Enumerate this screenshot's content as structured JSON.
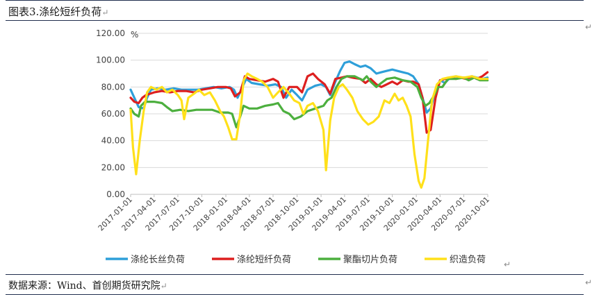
{
  "header": {
    "title": "图表3.涤纶短纤负荷"
  },
  "footer": {
    "source": "数据来源：Wind、首创期货研究院"
  },
  "paragraph_mark": "↵",
  "chart_data": {
    "type": "line",
    "ylabel": "%",
    "ylim": [
      0,
      120
    ],
    "y_ticks": [
      "0.00",
      "20.00",
      "40.00",
      "60.00",
      "80.00",
      "100.00",
      "120.00"
    ],
    "x_ticks": [
      "2017-01-01",
      "2017-04-01",
      "2017-07-01",
      "2017-10-01",
      "2018-01-01",
      "2018-04-01",
      "2018-07-01",
      "2018-10-01",
      "2019-01-01",
      "2019-04-01",
      "2019-07-01",
      "2019-10-01",
      "2020-01-01",
      "2020-04-01",
      "2020-07-01",
      "2020-10-01"
    ],
    "xlim": [
      "2017-01-01",
      "2020-10-01"
    ],
    "grid": true,
    "legend_position": "bottom",
    "series": [
      {
        "name": "涤纶长丝负荷",
        "color": "#2e9fd9",
        "points": [
          [
            "2017-01-01",
            78
          ],
          [
            "2017-01-20",
            70
          ],
          [
            "2017-02-01",
            65
          ],
          [
            "2017-02-20",
            64
          ],
          [
            "2017-03-05",
            72
          ],
          [
            "2017-03-20",
            78
          ],
          [
            "2017-04-15",
            79
          ],
          [
            "2017-05-15",
            78
          ],
          [
            "2017-06-15",
            79
          ],
          [
            "2017-07-15",
            78
          ],
          [
            "2017-08-15",
            78
          ],
          [
            "2017-09-15",
            78
          ],
          [
            "2017-10-15",
            79
          ],
          [
            "2017-11-15",
            80
          ],
          [
            "2017-12-15",
            79
          ],
          [
            "2018-01-15",
            80
          ],
          [
            "2018-02-01",
            78
          ],
          [
            "2018-02-15",
            72
          ],
          [
            "2018-03-01",
            78
          ],
          [
            "2018-03-20",
            86
          ],
          [
            "2018-04-10",
            83
          ],
          [
            "2018-05-10",
            82
          ],
          [
            "2018-06-10",
            81
          ],
          [
            "2018-07-10",
            82
          ],
          [
            "2018-08-01",
            80
          ],
          [
            "2018-08-20",
            72
          ],
          [
            "2018-09-10",
            78
          ],
          [
            "2018-10-01",
            74
          ],
          [
            "2018-10-20",
            70
          ],
          [
            "2018-11-10",
            78
          ],
          [
            "2018-12-10",
            81
          ],
          [
            "2019-01-01",
            82
          ],
          [
            "2019-01-20",
            80
          ],
          [
            "2019-02-05",
            74
          ],
          [
            "2019-02-25",
            84
          ],
          [
            "2019-03-15",
            92
          ],
          [
            "2019-04-01",
            98
          ],
          [
            "2019-04-20",
            99
          ],
          [
            "2019-05-10",
            97
          ],
          [
            "2019-06-01",
            95
          ],
          [
            "2019-06-20",
            96
          ],
          [
            "2019-07-10",
            94
          ],
          [
            "2019-08-01",
            90
          ],
          [
            "2019-08-20",
            91
          ],
          [
            "2019-09-10",
            92
          ],
          [
            "2019-10-01",
            93
          ],
          [
            "2019-10-20",
            92
          ],
          [
            "2019-11-10",
            91
          ],
          [
            "2019-12-01",
            90
          ],
          [
            "2019-12-20",
            88
          ],
          [
            "2020-01-10",
            82
          ],
          [
            "2020-01-25",
            72
          ],
          [
            "2020-02-10",
            61
          ],
          [
            "2020-02-25",
            64
          ],
          [
            "2020-03-15",
            78
          ],
          [
            "2020-04-01",
            85
          ],
          [
            "2020-04-20",
            83
          ],
          [
            "2020-05-10",
            87
          ],
          [
            "2020-06-01",
            88
          ],
          [
            "2020-06-20",
            87
          ],
          [
            "2020-07-10",
            87
          ],
          [
            "2020-08-01",
            88
          ],
          [
            "2020-08-20",
            87
          ],
          [
            "2020-09-10",
            86
          ],
          [
            "2020-09-30",
            87
          ]
        ]
      },
      {
        "name": "涤纶短纤负荷",
        "color": "#dd1f1f",
        "points": [
          [
            "2017-01-01",
            72
          ],
          [
            "2017-01-15",
            69
          ],
          [
            "2017-02-01",
            68
          ],
          [
            "2017-02-15",
            72
          ],
          [
            "2017-03-01",
            74
          ],
          [
            "2017-04-01",
            76
          ],
          [
            "2017-05-01",
            77
          ],
          [
            "2017-06-01",
            76
          ],
          [
            "2017-07-01",
            77
          ],
          [
            "2017-08-01",
            77
          ],
          [
            "2017-09-01",
            76
          ],
          [
            "2017-10-01",
            78
          ],
          [
            "2017-11-01",
            79
          ],
          [
            "2017-12-01",
            80
          ],
          [
            "2018-01-01",
            80
          ],
          [
            "2018-01-20",
            79
          ],
          [
            "2018-02-05",
            73
          ],
          [
            "2018-02-25",
            76
          ],
          [
            "2018-03-15",
            88
          ],
          [
            "2018-04-01",
            86
          ],
          [
            "2018-05-01",
            85
          ],
          [
            "2018-06-01",
            84
          ],
          [
            "2018-07-01",
            86
          ],
          [
            "2018-07-20",
            84
          ],
          [
            "2018-08-10",
            72
          ],
          [
            "2018-09-01",
            80
          ],
          [
            "2018-10-01",
            80
          ],
          [
            "2018-10-20",
            76
          ],
          [
            "2018-11-10",
            88
          ],
          [
            "2018-12-01",
            90
          ],
          [
            "2018-12-20",
            86
          ],
          [
            "2019-01-15",
            82
          ],
          [
            "2019-02-05",
            75
          ],
          [
            "2019-02-25",
            86
          ],
          [
            "2019-03-20",
            87
          ],
          [
            "2019-04-10",
            88
          ],
          [
            "2019-05-01",
            87
          ],
          [
            "2019-06-01",
            86
          ],
          [
            "2019-06-20",
            83
          ],
          [
            "2019-07-10",
            86
          ],
          [
            "2019-08-01",
            82
          ],
          [
            "2019-08-20",
            80
          ],
          [
            "2019-09-10",
            82
          ],
          [
            "2019-10-01",
            84
          ],
          [
            "2019-10-20",
            82
          ],
          [
            "2019-11-10",
            85
          ],
          [
            "2019-12-01",
            84
          ],
          [
            "2019-12-20",
            84
          ],
          [
            "2020-01-10",
            82
          ],
          [
            "2020-01-25",
            72
          ],
          [
            "2020-02-10",
            46
          ],
          [
            "2020-02-25",
            48
          ],
          [
            "2020-03-15",
            72
          ],
          [
            "2020-04-01",
            85
          ],
          [
            "2020-04-20",
            86
          ],
          [
            "2020-05-10",
            87
          ],
          [
            "2020-06-01",
            86
          ],
          [
            "2020-06-20",
            87
          ],
          [
            "2020-07-10",
            86
          ],
          [
            "2020-08-01",
            88
          ],
          [
            "2020-08-20",
            86
          ],
          [
            "2020-09-10",
            88
          ],
          [
            "2020-09-30",
            91
          ]
        ]
      },
      {
        "name": "聚酯切片负荷",
        "color": "#4caf3e",
        "points": [
          [
            "2017-01-01",
            64
          ],
          [
            "2017-01-15",
            60
          ],
          [
            "2017-02-01",
            58
          ],
          [
            "2017-02-10",
            66
          ],
          [
            "2017-02-25",
            69
          ],
          [
            "2017-04-01",
            69
          ],
          [
            "2017-05-01",
            68
          ],
          [
            "2017-05-20",
            65
          ],
          [
            "2017-06-10",
            62
          ],
          [
            "2017-07-10",
            63
          ],
          [
            "2017-08-10",
            62
          ],
          [
            "2017-09-10",
            63
          ],
          [
            "2017-10-10",
            63
          ],
          [
            "2017-11-10",
            63
          ],
          [
            "2017-12-10",
            61
          ],
          [
            "2018-01-10",
            61
          ],
          [
            "2018-01-25",
            60
          ],
          [
            "2018-02-10",
            50
          ],
          [
            "2018-02-25",
            58
          ],
          [
            "2018-03-10",
            66
          ],
          [
            "2018-04-01",
            64
          ],
          [
            "2018-05-01",
            64
          ],
          [
            "2018-06-01",
            66
          ],
          [
            "2018-07-01",
            67
          ],
          [
            "2018-07-20",
            68
          ],
          [
            "2018-08-10",
            62
          ],
          [
            "2018-09-01",
            60
          ],
          [
            "2018-09-20",
            56
          ],
          [
            "2018-10-15",
            58
          ],
          [
            "2018-11-10",
            62
          ],
          [
            "2018-12-10",
            64
          ],
          [
            "2019-01-10",
            66
          ],
          [
            "2019-01-25",
            70
          ],
          [
            "2019-02-10",
            72
          ],
          [
            "2019-03-01",
            80
          ],
          [
            "2019-03-20",
            86
          ],
          [
            "2019-04-10",
            88
          ],
          [
            "2019-05-10",
            88
          ],
          [
            "2019-06-10",
            85
          ],
          [
            "2019-06-25",
            88
          ],
          [
            "2019-07-10",
            84
          ],
          [
            "2019-08-01",
            80
          ],
          [
            "2019-08-20",
            83
          ],
          [
            "2019-09-10",
            86
          ],
          [
            "2019-10-10",
            87
          ],
          [
            "2019-11-10",
            85
          ],
          [
            "2019-12-10",
            84
          ],
          [
            "2020-01-05",
            80
          ],
          [
            "2020-01-20",
            72
          ],
          [
            "2020-02-05",
            66
          ],
          [
            "2020-02-20",
            68
          ],
          [
            "2020-03-10",
            74
          ],
          [
            "2020-03-25",
            80
          ],
          [
            "2020-04-10",
            80
          ],
          [
            "2020-05-01",
            86
          ],
          [
            "2020-06-01",
            86
          ],
          [
            "2020-07-01",
            87
          ],
          [
            "2020-07-20",
            85
          ],
          [
            "2020-08-10",
            87
          ],
          [
            "2020-09-01",
            85
          ],
          [
            "2020-09-30",
            85
          ]
        ]
      },
      {
        "name": "织造负荷",
        "color": "#ffe01a",
        "points": [
          [
            "2017-01-01",
            63
          ],
          [
            "2017-01-10",
            35
          ],
          [
            "2017-01-22",
            15
          ],
          [
            "2017-02-05",
            40
          ],
          [
            "2017-02-20",
            62
          ],
          [
            "2017-03-05",
            76
          ],
          [
            "2017-03-20",
            80
          ],
          [
            "2017-04-10",
            78
          ],
          [
            "2017-05-01",
            80
          ],
          [
            "2017-05-20",
            76
          ],
          [
            "2017-06-10",
            78
          ],
          [
            "2017-07-01",
            74
          ],
          [
            "2017-07-15",
            70
          ],
          [
            "2017-07-25",
            56
          ],
          [
            "2017-08-10",
            72
          ],
          [
            "2017-09-01",
            75
          ],
          [
            "2017-09-20",
            78
          ],
          [
            "2017-10-10",
            74
          ],
          [
            "2017-11-01",
            76
          ],
          [
            "2017-11-20",
            70
          ],
          [
            "2017-12-10",
            62
          ],
          [
            "2017-12-25",
            58
          ],
          [
            "2018-01-10",
            50
          ],
          [
            "2018-01-25",
            41
          ],
          [
            "2018-02-10",
            41
          ],
          [
            "2018-02-25",
            60
          ],
          [
            "2018-03-10",
            85
          ],
          [
            "2018-03-25",
            90
          ],
          [
            "2018-04-10",
            88
          ],
          [
            "2018-05-01",
            86
          ],
          [
            "2018-05-20",
            84
          ],
          [
            "2018-06-10",
            80
          ],
          [
            "2018-07-01",
            72
          ],
          [
            "2018-07-20",
            76
          ],
          [
            "2018-08-10",
            80
          ],
          [
            "2018-09-01",
            75
          ],
          [
            "2018-09-20",
            70
          ],
          [
            "2018-10-10",
            68
          ],
          [
            "2018-10-25",
            60
          ],
          [
            "2018-11-10",
            66
          ],
          [
            "2018-12-01",
            68
          ],
          [
            "2018-12-20",
            62
          ],
          [
            "2019-01-10",
            48
          ],
          [
            "2019-01-20",
            18
          ],
          [
            "2019-02-05",
            55
          ],
          [
            "2019-02-20",
            72
          ],
          [
            "2019-03-10",
            80
          ],
          [
            "2019-03-25",
            82
          ],
          [
            "2019-04-10",
            78
          ],
          [
            "2019-05-01",
            72
          ],
          [
            "2019-05-20",
            62
          ],
          [
            "2019-06-10",
            56
          ],
          [
            "2019-07-01",
            52
          ],
          [
            "2019-07-20",
            54
          ],
          [
            "2019-08-10",
            58
          ],
          [
            "2019-09-01",
            70
          ],
          [
            "2019-09-20",
            68
          ],
          [
            "2019-10-10",
            75
          ],
          [
            "2019-10-25",
            70
          ],
          [
            "2019-11-10",
            72
          ],
          [
            "2019-11-25",
            66
          ],
          [
            "2019-12-10",
            58
          ],
          [
            "2019-12-25",
            30
          ],
          [
            "2020-01-10",
            10
          ],
          [
            "2020-01-20",
            5
          ],
          [
            "2020-02-01",
            12
          ],
          [
            "2020-02-15",
            40
          ],
          [
            "2020-03-01",
            70
          ],
          [
            "2020-03-20",
            82
          ],
          [
            "2020-04-10",
            86
          ],
          [
            "2020-05-01",
            87
          ],
          [
            "2020-06-01",
            88
          ],
          [
            "2020-07-01",
            87
          ],
          [
            "2020-08-01",
            88
          ],
          [
            "2020-09-01",
            86
          ],
          [
            "2020-09-30",
            86
          ]
        ]
      }
    ]
  }
}
